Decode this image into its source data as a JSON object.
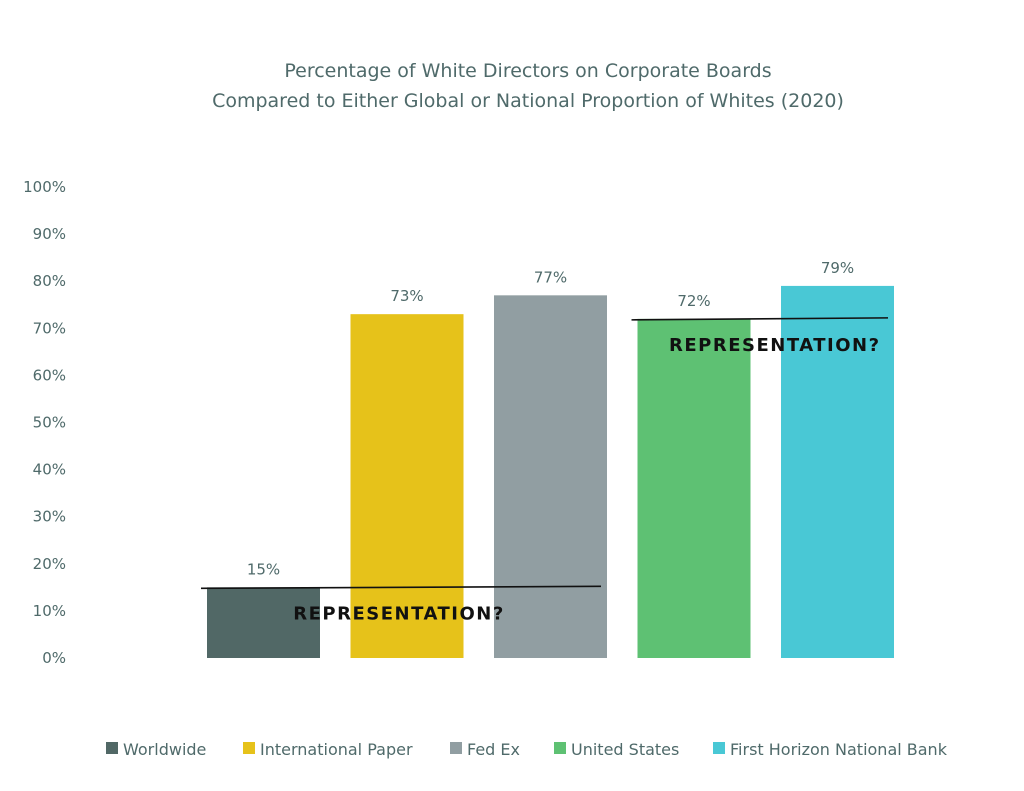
{
  "chart_data": {
    "type": "bar",
    "title": [
      "Percentage of White Directors on Corporate Boards",
      "Compared to Either Global or National Proportion of Whites (2020)"
    ],
    "xlabel": "",
    "ylabel": "",
    "ylim": [
      0,
      100
    ],
    "yticks": [
      "0%",
      "10%",
      "20%",
      "30%",
      "40%",
      "50%",
      "60%",
      "70%",
      "80%",
      "90%",
      "100%"
    ],
    "grid": false,
    "legend_position": "bottom",
    "categories": [
      "Worldwide",
      "International Paper",
      "Fed Ex",
      "United States",
      "First Horizon National Bank"
    ],
    "values": [
      15,
      73,
      77,
      72,
      79
    ],
    "labels": [
      "15%",
      "73%",
      "77%",
      "72%",
      "79%"
    ],
    "colors": [
      "#516866",
      "#e6c21a",
      "#919ea2",
      "#5ec173",
      "#49c8d5"
    ],
    "annotations": [
      {
        "text": "REPRESENTATION?",
        "value": 15,
        "from_category": 0,
        "to_category": 2
      },
      {
        "text": "REPRESENTATION?",
        "value": 72,
        "from_category": 3,
        "to_category": 4
      }
    ]
  }
}
